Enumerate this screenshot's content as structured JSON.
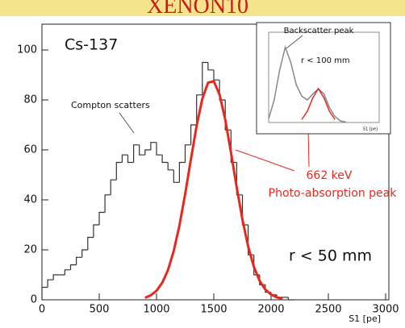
{
  "header": {
    "title": "XENON10"
  },
  "chart_data": [
    {
      "type": "histogram",
      "x_label": "S1 [pe]",
      "bins": [
        0,
        50,
        100,
        150,
        200,
        250,
        300,
        350,
        400,
        450,
        500,
        550,
        600,
        650,
        700,
        750,
        800,
        850,
        900,
        950,
        1000,
        1050,
        1100,
        1150,
        1200,
        1250,
        1300,
        1350,
        1400,
        1450,
        1500,
        1550,
        1600,
        1650,
        1700,
        1750,
        1800,
        1850,
        1900,
        1950,
        2000,
        2050,
        2100,
        2150,
        2200
      ],
      "values": [
        5,
        8,
        10,
        10,
        12,
        14,
        17,
        20,
        25,
        30,
        35,
        42,
        48,
        55,
        58,
        55,
        62,
        58,
        60,
        63,
        58,
        55,
        52,
        47,
        55,
        62,
        70,
        82,
        95,
        92,
        88,
        80,
        68,
        55,
        42,
        30,
        18,
        10,
        6,
        3,
        2,
        1,
        1,
        0
      ],
      "color": "#333333",
      "overlay": {
        "type": "line",
        "color": "#e8281e",
        "x": [
          900,
          950,
          1000,
          1050,
          1100,
          1150,
          1200,
          1250,
          1300,
          1350,
          1400,
          1450,
          1500,
          1550,
          1600,
          1650,
          1700,
          1750,
          1800,
          1850,
          1900,
          1950,
          2000,
          2050,
          2100
        ],
        "values": [
          0.8,
          1.8,
          3.6,
          6.8,
          11.9,
          19.5,
          29.7,
          42.3,
          56.2,
          69.6,
          80.5,
          86.9,
          87.5,
          82.2,
          72.1,
          59,
          45,
          32.1,
          21.3,
          13.2,
          7.6,
          4.1,
          2.1,
          1,
          0.4
        ]
      },
      "xlim": [
        0,
        3000
      ],
      "xticks": [
        0,
        500,
        1000,
        1500,
        2000,
        2500,
        3000
      ],
      "ylim": [
        0,
        110
      ],
      "yticks": [
        0,
        20,
        40,
        60,
        80,
        100
      ],
      "annotations": [
        "Cs-137",
        "Compton scatters",
        "662 keV",
        "Photo-absorption peak",
        "r < 50 mm"
      ]
    },
    {
      "type": "line",
      "x_label": "S1 [pe]",
      "x": [
        0,
        150,
        300,
        450,
        600,
        750,
        900,
        1050,
        1200,
        1350,
        1500,
        1650,
        1800,
        1950,
        2100
      ],
      "series": [
        {
          "color": "#888888",
          "values": [
            50,
            300,
            700,
            1000,
            800,
            500,
            350,
            300,
            380,
            450,
            380,
            200,
            80,
            20,
            5
          ]
        },
        {
          "color": "#e8281e",
          "values": [
            null,
            null,
            null,
            null,
            null,
            null,
            40,
            150,
            330,
            450,
            330,
            150,
            40,
            null,
            null
          ]
        }
      ],
      "xlim": [
        0,
        3000
      ],
      "ylim": [
        0,
        1200
      ],
      "annotations": [
        "Backscatter peak",
        "r < 100 mm"
      ]
    }
  ]
}
